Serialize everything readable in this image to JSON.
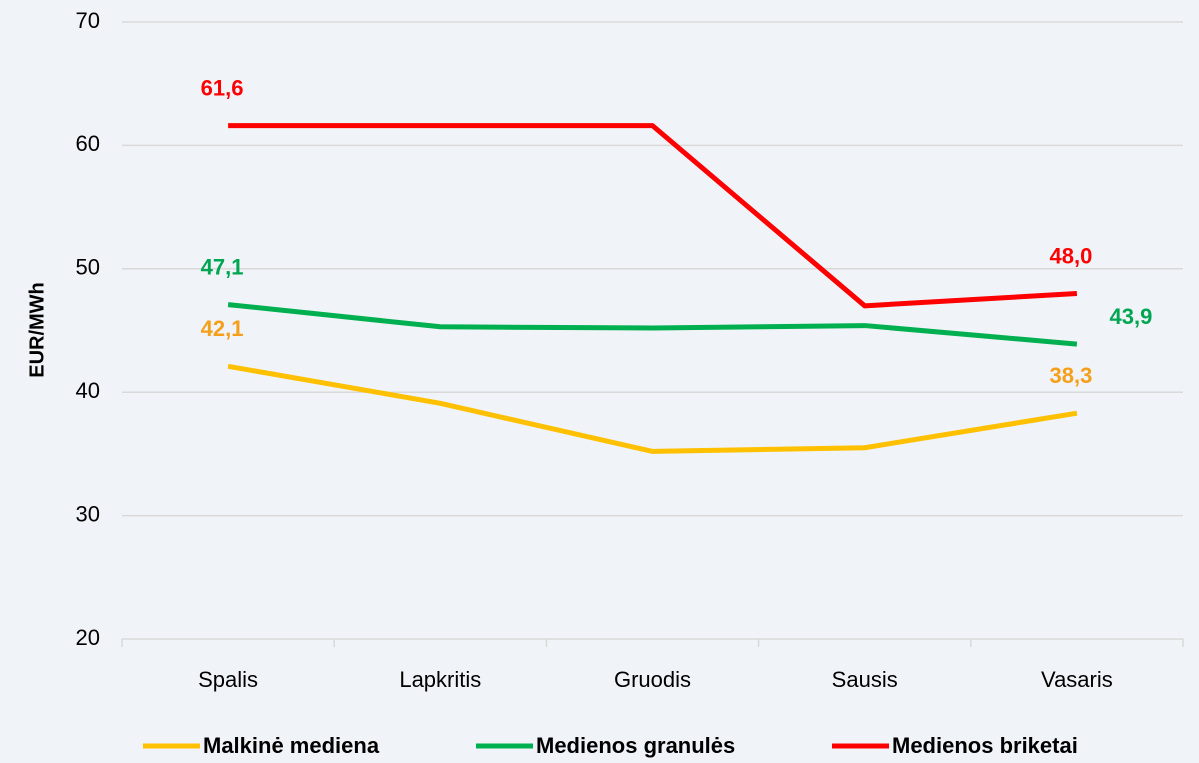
{
  "chart_data": {
    "type": "line",
    "y_axis_label": "EUR/MWh",
    "categories": [
      "Spalis",
      "Lapkritis",
      "Gruodis",
      "Sausis",
      "Vasaris"
    ],
    "series": [
      {
        "name": "Malkinė mediena",
        "color": "#ffc000",
        "label_color": "#f59f1a",
        "values": [
          42.1,
          39.1,
          35.2,
          35.5,
          38.3
        ],
        "value_labels": [
          "42,1",
          null,
          null,
          null,
          "38,3"
        ]
      },
      {
        "name": "Medienos granulės",
        "color": "#00b050",
        "label_color": "#00a651",
        "values": [
          47.1,
          45.3,
          45.2,
          45.4,
          43.9
        ],
        "value_labels": [
          "47,1",
          null,
          null,
          null,
          "43,9"
        ]
      },
      {
        "name": "Medienos briketai",
        "color": "#ff0000",
        "label_color": "#ff0000",
        "values": [
          61.6,
          61.6,
          61.6,
          47.0,
          48.0
        ],
        "value_labels": [
          "61,6",
          null,
          null,
          null,
          "48,0"
        ]
      }
    ],
    "ylim": [
      20,
      70
    ],
    "yticks": [
      20,
      30,
      40,
      50,
      60,
      70
    ],
    "grid": true,
    "legend": "bottom"
  }
}
